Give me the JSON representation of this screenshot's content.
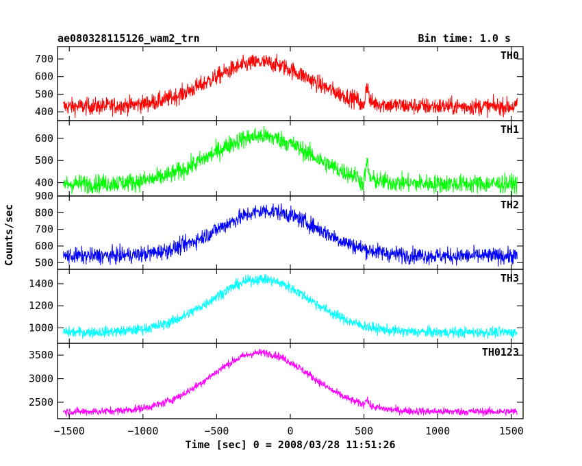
{
  "header": {
    "left_title": "ae080328115126_wam2_trn",
    "right_title": "Bin time: 1.0 s"
  },
  "chart_data": {
    "type": "line",
    "title": "ae080328115126_wam2_trn",
    "subtitle": "Bin time: 1.0 s",
    "xlabel": "Time [sec] 0 = 2008/03/28 11:51:26",
    "ylabel": "Counts/sec",
    "xlim": [
      -1580,
      1580
    ],
    "x_ticks": [
      -1500,
      -1000,
      -500,
      0,
      500,
      1000,
      1500
    ],
    "x_tick_labels": [
      "−1500",
      "−1000",
      "−500",
      "0",
      "500",
      "1000",
      "1500"
    ],
    "x_data_range": [
      -1540,
      1540
    ],
    "panels": [
      {
        "name": "TH0",
        "color": "#ff0000",
        "ylim": [
          350,
          770
        ],
        "y_ticks": [
          400,
          500,
          600,
          700
        ],
        "baseline": 430,
        "peak": 680,
        "peak_time": -200,
        "width": 480,
        "noise": 35,
        "spike": {
          "t": 520,
          "amp": 100
        },
        "dip": {
          "t": 490,
          "amp": -40
        }
      },
      {
        "name": "TH1",
        "color": "#00ff00",
        "ylim": [
          340,
          680
        ],
        "y_ticks": [
          400,
          500,
          600
        ],
        "baseline": 395,
        "peak": 610,
        "peak_time": -200,
        "width": 480,
        "noise": 30,
        "spike": {
          "t": 520,
          "amp": 70
        },
        "dip": {
          "t": 490,
          "amp": -30
        }
      },
      {
        "name": "TH2",
        "color": "#0000ff",
        "ylim": [
          460,
          900
        ],
        "y_ticks": [
          500,
          600,
          700,
          800,
          900
        ],
        "baseline": 540,
        "peak": 810,
        "peak_time": -150,
        "width": 480,
        "noise": 35,
        "spike": null,
        "dip": null
      },
      {
        "name": "TH3",
        "color": "#00ffff",
        "ylim": [
          860,
          1530
        ],
        "y_ticks": [
          1000,
          1200,
          1400
        ],
        "baseline": 960,
        "peak": 1440,
        "peak_time": -200,
        "width": 480,
        "noise": 35,
        "spike": null,
        "dip": null
      },
      {
        "name": "TH0123",
        "color": "#ff00ff",
        "ylim": [
          2150,
          3750
        ],
        "y_ticks": [
          2500,
          3000,
          3500
        ],
        "baseline": 2300,
        "peak": 3550,
        "peak_time": -200,
        "width": 480,
        "noise": 60,
        "spike": {
          "t": 520,
          "amp": 150
        },
        "dip": null
      }
    ]
  }
}
